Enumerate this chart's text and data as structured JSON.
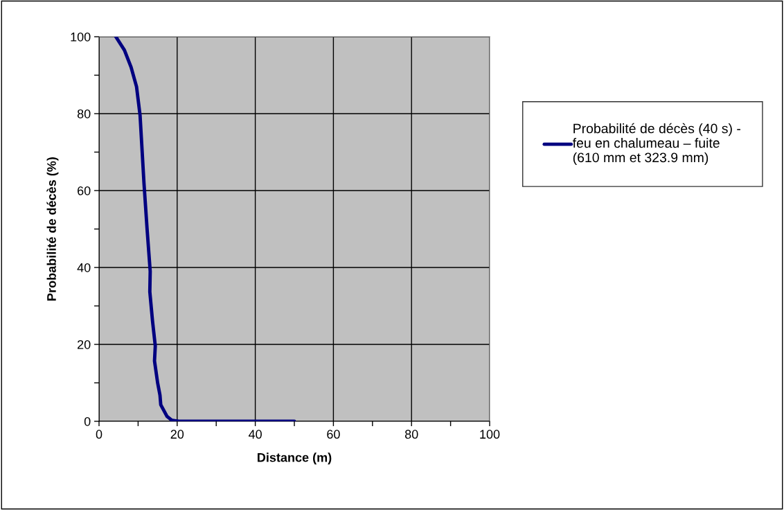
{
  "chart_data": {
    "type": "line",
    "xlabel": "Distance (m)",
    "ylabel": "Probabilité de décès (%)",
    "series": [
      {
        "name": "Probabilité de décès (40 s) -\nfeu en chalumeau – fuite\n(610 mm et 323.9 mm)",
        "color": "#000080",
        "x": [
          4.3,
          6.5,
          8.2,
          9.6,
          10.5,
          11.5,
          12.3,
          13.1,
          13.0,
          13.7,
          14.4,
          14.2,
          15.0,
          15.6,
          15.8,
          17.4,
          18.6,
          20.4,
          30,
          40,
          50
        ],
        "values": [
          100,
          96.5,
          92.1,
          87,
          79.6,
          62,
          50,
          39,
          33.7,
          26,
          19.6,
          15.7,
          10,
          6.8,
          4.3,
          1.3,
          0.3,
          0,
          0,
          0,
          0
        ]
      }
    ],
    "xlim": [
      0,
      100
    ],
    "ylim": [
      0,
      100
    ],
    "xticks": [
      0,
      {
        "value": 10,
        "label": null
      },
      20,
      {
        "value": 30,
        "label": null
      },
      40,
      {
        "value": 50,
        "label": null
      },
      60,
      {
        "value": 70,
        "label": null
      },
      80,
      {
        "value": 90,
        "label": null
      },
      100
    ],
    "yticks": [
      0,
      {
        "value": 10,
        "label": null
      },
      20,
      {
        "value": 30,
        "label": null
      },
      40,
      {
        "value": 50,
        "label": null
      },
      60,
      {
        "value": 70,
        "label": null
      },
      80,
      {
        "value": 90,
        "label": null
      },
      100
    ],
    "grid": true,
    "legend": "right",
    "marker": "none",
    "line_style": "solid"
  }
}
